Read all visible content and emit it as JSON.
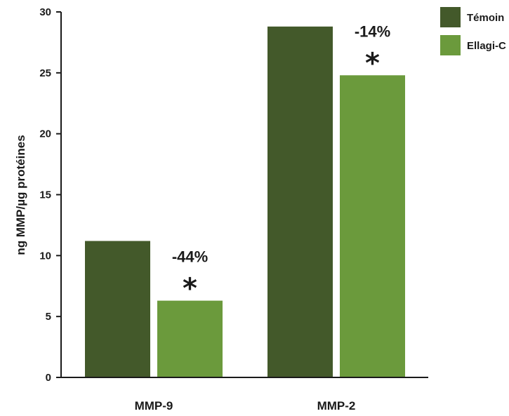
{
  "chart_data": {
    "type": "bar",
    "categories": [
      "MMP-9",
      "MMP-2"
    ],
    "series": [
      {
        "name": "Témoin",
        "values": [
          11.2,
          28.8
        ],
        "color": "#43592a"
      },
      {
        "name": "Ellagi-C",
        "values": [
          6.3,
          24.8
        ],
        "color": "#6b9a3c"
      }
    ],
    "ylabel": "ng MMP/µg protéines",
    "ylim": [
      0,
      30
    ],
    "yticks": [
      0,
      5,
      10,
      15,
      20,
      25,
      30
    ],
    "annotations": [
      {
        "category": "MMP-9",
        "series": "Ellagi-C",
        "percent": "-44%",
        "mark": "*"
      },
      {
        "category": "MMP-2",
        "series": "Ellagi-C",
        "percent": "-14%",
        "mark": "*"
      }
    ],
    "legend_position": "top-right",
    "grid": false
  }
}
